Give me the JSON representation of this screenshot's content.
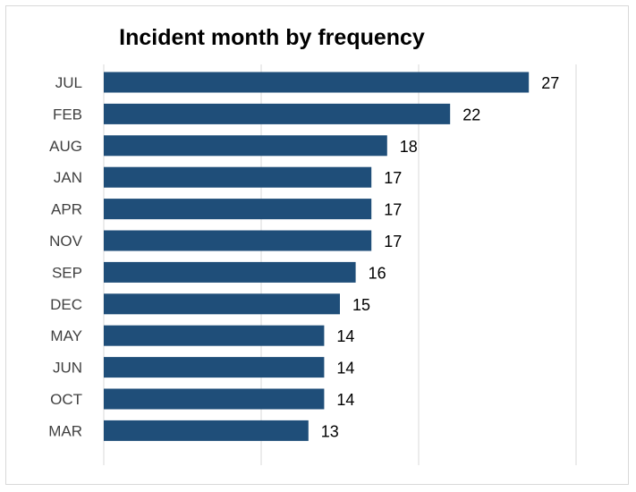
{
  "chart_data": {
    "type": "bar",
    "orientation": "horizontal",
    "title": "Incident month by frequency",
    "xlabel": "",
    "ylabel": "",
    "categories": [
      "JUL",
      "FEB",
      "AUG",
      "JAN",
      "APR",
      "NOV",
      "SEP",
      "DEC",
      "MAY",
      "JUN",
      "OCT",
      "MAR"
    ],
    "values": [
      27,
      22,
      18,
      17,
      17,
      17,
      16,
      15,
      14,
      14,
      14,
      13
    ],
    "xlim": [
      0,
      30
    ],
    "grid": true,
    "data_labels": true,
    "legend": "none",
    "bar_color": "#1f4e79"
  }
}
